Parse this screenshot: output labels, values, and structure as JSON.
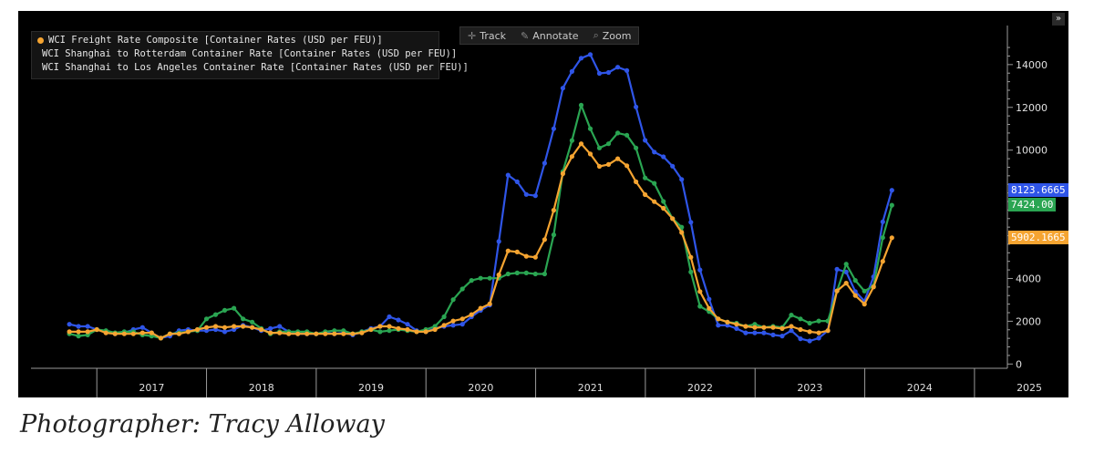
{
  "caption": "Photographer: Tracy Alloway",
  "toolbar": {
    "track_label": "Track",
    "annotate_label": "Annotate",
    "zoom_label": "Zoom",
    "expand_label": "»"
  },
  "colors": {
    "composite": "#f5a431",
    "rotterdam": "#2f55e8",
    "los_angeles": "#2aa552",
    "background": "#000000"
  },
  "badges": {
    "rotterdam": "8123.6665",
    "los_angeles": "7424.00",
    "composite": "5902.1665"
  },
  "chart_data": {
    "type": "line",
    "title": "",
    "xlabel": "",
    "ylabel": "",
    "legend_position": "top-left",
    "grid": false,
    "x_start": 2016.75,
    "x_step": 0.0833,
    "x_range": [
      2016.4,
      2025.3
    ],
    "ylim": [
      -200,
      15400
    ],
    "y_ticks": [
      0,
      2000,
      4000,
      6000,
      8000,
      10000,
      12000,
      14000
    ],
    "y_tick_labels": [
      "0",
      "2000",
      "4000",
      "6000",
      "8000",
      "10000",
      "12000",
      "14000"
    ],
    "x_tick_labels": [
      "2017",
      "2018",
      "2019",
      "2020",
      "2021",
      "2022",
      "2023",
      "2024",
      "2025"
    ],
    "x_tick_positions": [
      2017,
      2018,
      2019,
      2020,
      2021,
      2022,
      2023,
      2024,
      2025
    ],
    "series": [
      {
        "key": "rotterdam",
        "name": "WCI Shanghai to Rotterdam Container Rate [Container Rates (USD per FEU)]",
        "values": [
          1860,
          1760,
          1760,
          1610,
          1510,
          1410,
          1460,
          1610,
          1710,
          1460,
          1210,
          1310,
          1560,
          1610,
          1560,
          1560,
          1610,
          1510,
          1610,
          1810,
          1710,
          1560,
          1660,
          1760,
          1510,
          1410,
          1410,
          1410,
          1460,
          1410,
          1460,
          1360,
          1510,
          1660,
          1760,
          2210,
          2060,
          1860,
          1560,
          1510,
          1660,
          1760,
          1810,
          1860,
          2210,
          2510,
          2760,
          5730,
          8830,
          8520,
          7930,
          7870,
          9390,
          11000,
          12900,
          13680,
          14300,
          14470,
          13590,
          13630,
          13880,
          13720,
          12020,
          10460,
          9910,
          9690,
          9250,
          8630,
          6630,
          4400,
          3030,
          1810,
          1810,
          1660,
          1460,
          1460,
          1460,
          1360,
          1310,
          1560,
          1180,
          1080,
          1210,
          1560,
          4430,
          4300,
          3390,
          2940,
          4080,
          6650,
          8123.6665
        ]
      },
      {
        "key": "los_angeles",
        "name": "WCI Shanghai to Los Angeles Container Rate [Container Rates (USD per FEU)]",
        "values": [
          1410,
          1310,
          1360,
          1610,
          1560,
          1460,
          1510,
          1510,
          1360,
          1310,
          1210,
          1410,
          1460,
          1510,
          1560,
          2110,
          2310,
          2510,
          2610,
          2110,
          1960,
          1660,
          1410,
          1510,
          1510,
          1510,
          1510,
          1410,
          1510,
          1560,
          1560,
          1410,
          1510,
          1610,
          1510,
          1560,
          1610,
          1560,
          1510,
          1610,
          1760,
          2210,
          3010,
          3510,
          3910,
          4010,
          4010,
          4010,
          4210,
          4260,
          4260,
          4210,
          4210,
          6040,
          9000,
          10450,
          12100,
          11000,
          10100,
          10300,
          10800,
          10700,
          10100,
          8700,
          8450,
          7600,
          6800,
          6400,
          4300,
          2700,
          2450,
          2110,
          1960,
          1910,
          1760,
          1860,
          1710,
          1760,
          1710,
          2290,
          2110,
          1910,
          2010,
          2010,
          3420,
          4670,
          3910,
          3410,
          3650,
          5910,
          7424.0
        ]
      },
      {
        "key": "composite",
        "name": "WCI Freight Rate Composite [Container Rates (USD per FEU)]",
        "values": [
          1510,
          1510,
          1510,
          1610,
          1460,
          1410,
          1410,
          1410,
          1460,
          1460,
          1210,
          1410,
          1410,
          1510,
          1610,
          1710,
          1760,
          1710,
          1760,
          1760,
          1710,
          1610,
          1460,
          1460,
          1410,
          1410,
          1410,
          1410,
          1410,
          1410,
          1410,
          1410,
          1460,
          1610,
          1760,
          1760,
          1660,
          1610,
          1510,
          1510,
          1610,
          1810,
          2010,
          2110,
          2310,
          2610,
          2810,
          4170,
          5290,
          5240,
          5040,
          4990,
          5820,
          7190,
          8900,
          9700,
          10300,
          9820,
          9240,
          9330,
          9600,
          9270,
          8520,
          7920,
          7590,
          7280,
          6800,
          6150,
          4990,
          3390,
          2600,
          2110,
          1960,
          1860,
          1760,
          1710,
          1710,
          1710,
          1660,
          1760,
          1610,
          1510,
          1460,
          1560,
          3420,
          3780,
          3200,
          2800,
          3600,
          4800,
          5902.1665
        ]
      }
    ]
  }
}
